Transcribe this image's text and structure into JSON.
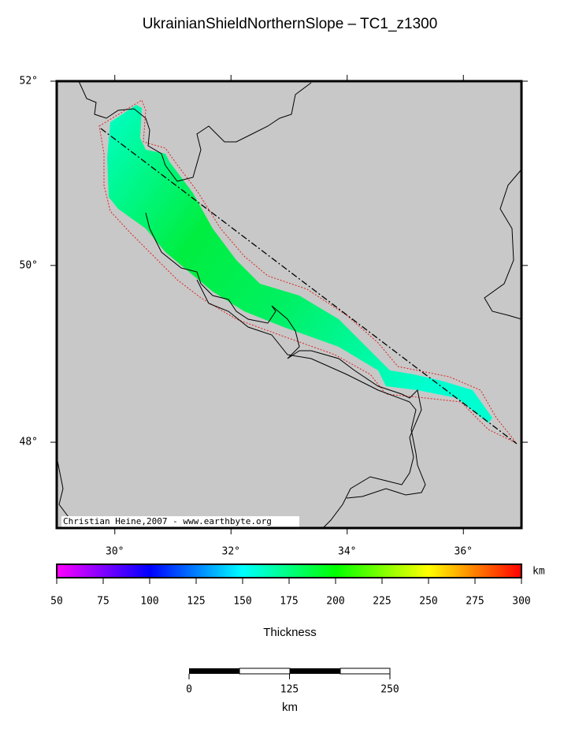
{
  "title": "UkrainianShieldNorthernSlope – TC1_z1300",
  "map": {
    "xlim": [
      29,
      37
    ],
    "ylim": [
      47,
      52
    ],
    "xticks": [
      {
        "value": 30,
        "label": "30°"
      },
      {
        "value": 32,
        "label": "32°"
      },
      {
        "value": 34,
        "label": "34°"
      },
      {
        "value": 36,
        "label": "36°"
      }
    ],
    "yticks": [
      {
        "value": 48,
        "label": "48°"
      },
      {
        "value": 50,
        "label": "50°"
      },
      {
        "value": 52,
        "label": "52°"
      }
    ],
    "credit": "Christian Heine,2007 - www.earthbyte.org"
  },
  "colorbar": {
    "lim": [
      50,
      300
    ],
    "ticks": [
      50,
      75,
      100,
      125,
      150,
      175,
      200,
      225,
      250,
      275,
      300
    ],
    "unit": "km",
    "label": "Thickness"
  },
  "scalebar": {
    "ticks": [
      0,
      125,
      250
    ],
    "unit": "km"
  }
}
